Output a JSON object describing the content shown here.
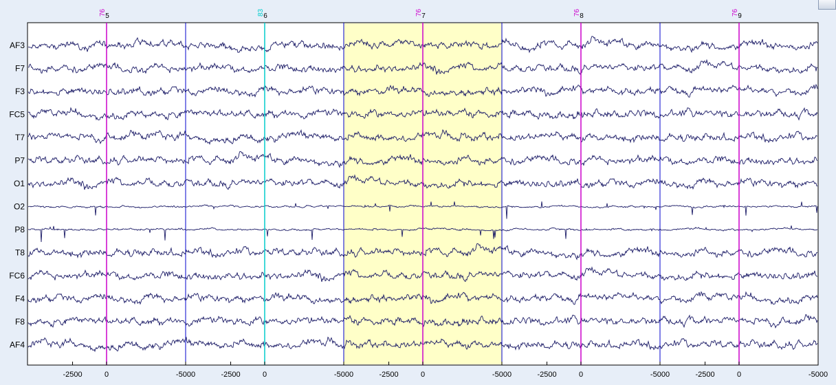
{
  "chart_data": {
    "type": "line",
    "description_kind": "multichannel EEG epoch plot",
    "channels": [
      "AF3",
      "F7",
      "F3",
      "FC5",
      "T7",
      "P7",
      "O1",
      "O2",
      "P8",
      "T8",
      "FC6",
      "F4",
      "F8",
      "AF4"
    ],
    "epochs": [
      5,
      6,
      7,
      8,
      9
    ],
    "epoch_x_ticks": [
      -2500,
      0,
      -5000,
      -2500,
      0,
      -5000,
      -2500,
      0,
      -5000,
      -2500,
      0,
      -5000,
      -2500,
      0,
      -5000
    ],
    "x_tick_labels": [
      "-2500",
      "0",
      "-5000",
      "-2500",
      "0",
      "-5000",
      "-2500",
      "0",
      "-5000",
      "-2500",
      "0",
      "-5000",
      "-2500",
      "0",
      "-5000"
    ],
    "events": [
      {
        "code": "76",
        "epoch": "5",
        "color": "#cc00cc"
      },
      {
        "code": "83",
        "epoch": "6",
        "color": "#00cccc"
      },
      {
        "code": "76",
        "epoch": "7",
        "color": "#cc00cc"
      },
      {
        "code": "76",
        "epoch": "8",
        "color": "#cc00cc"
      },
      {
        "code": "76",
        "epoch": "9",
        "color": "#cc00cc"
      }
    ],
    "highlighted_epoch": 7,
    "colors": {
      "trace": "#1a1a66",
      "highlight": "#ffffc8",
      "boundary": "#0000cc",
      "event_primary": "#cc00cc",
      "event_secondary": "#00cccc",
      "background": "#e7eef8"
    }
  }
}
